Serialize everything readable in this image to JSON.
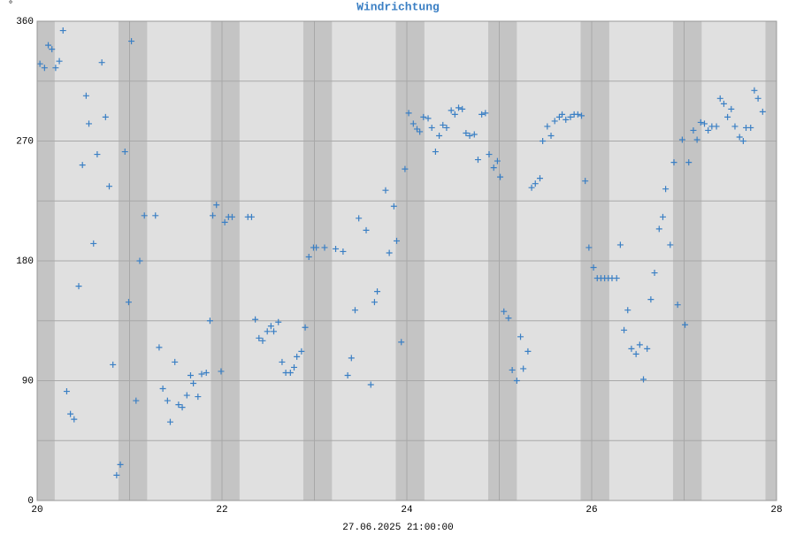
{
  "chart_data": {
    "type": "scatter",
    "title": "Windrichtung",
    "ylabel": "°",
    "xlabel": "27.06.2025 21:00:00",
    "color": "#3a7fc4",
    "grid": true,
    "xlim": [
      20,
      28
    ],
    "xticks": [
      20,
      22,
      24,
      26,
      28
    ],
    "xminor": [
      21,
      23,
      25,
      27
    ],
    "ylim": [
      0,
      360
    ],
    "yticks": [
      0,
      90,
      180,
      270,
      360
    ],
    "yminor": [
      45,
      135,
      225,
      315
    ],
    "x": [
      20.03,
      20.08,
      20.12,
      20.16,
      20.2,
      20.24,
      20.28,
      20.32,
      20.36,
      20.4,
      20.45,
      20.49,
      20.53,
      20.56,
      20.61,
      20.65,
      20.7,
      20.74,
      20.78,
      20.82,
      20.86,
      20.9,
      20.95,
      20.99,
      21.02,
      21.07,
      21.11,
      21.16,
      21.28,
      21.32,
      21.36,
      21.41,
      21.44,
      21.49,
      21.53,
      21.57,
      21.62,
      21.66,
      21.69,
      21.74,
      21.78,
      21.83,
      21.87,
      21.9,
      21.94,
      21.99,
      22.03,
      22.07,
      22.11,
      22.28,
      22.32,
      22.36,
      22.4,
      22.44,
      22.49,
      22.53,
      22.56,
      22.61,
      22.65,
      22.69,
      22.74,
      22.78,
      22.81,
      22.86,
      22.9,
      22.94,
      22.99,
      23.02,
      23.11,
      23.23,
      23.31,
      23.36,
      23.4,
      23.44,
      23.48,
      23.56,
      23.61,
      23.65,
      23.68,
      23.77,
      23.81,
      23.86,
      23.89,
      23.94,
      23.98,
      24.02,
      24.07,
      24.11,
      24.14,
      24.18,
      24.23,
      24.27,
      24.31,
      24.35,
      24.39,
      24.43,
      24.48,
      24.52,
      24.56,
      24.6,
      24.64,
      24.68,
      24.73,
      24.77,
      24.81,
      24.85,
      24.89,
      24.94,
      24.98,
      25.01,
      25.05,
      25.1,
      25.14,
      25.19,
      25.23,
      25.26,
      25.31,
      25.35,
      25.39,
      25.44,
      25.47,
      25.52,
      25.56,
      25.6,
      25.65,
      25.68,
      25.72,
      25.77,
      25.81,
      25.85,
      25.89,
      25.93,
      25.97,
      26.02,
      26.06,
      26.1,
      26.14,
      26.18,
      26.22,
      26.27,
      26.31,
      26.35,
      26.39,
      26.43,
      26.48,
      26.52,
      26.56,
      26.6,
      26.64,
      26.68,
      26.73,
      26.77,
      26.8,
      26.85,
      26.89,
      26.93,
      26.98,
      27.01,
      27.05,
      27.1,
      27.14,
      27.18,
      27.22,
      27.26,
      27.3,
      27.35,
      27.39,
      27.43,
      27.47,
      27.51,
      27.55,
      27.6,
      27.64,
      27.67,
      27.72,
      27.76,
      27.8,
      27.85
    ],
    "values": [
      328,
      325,
      342,
      339,
      325,
      330,
      353,
      82,
      65,
      61,
      161,
      252,
      304,
      283,
      193,
      260,
      329,
      288,
      236,
      102,
      19,
      27,
      262,
      149,
      345,
      75,
      180,
      214,
      214,
      115,
      84,
      75,
      59,
      104,
      72,
      70,
      79,
      94,
      88,
      78,
      95,
      96,
      135,
      214,
      222,
      97,
      209,
      213,
      213,
      213,
      213,
      136,
      122,
      120,
      127,
      131,
      127,
      134,
      104,
      96,
      96,
      100,
      108,
      112,
      130,
      183,
      190,
      190,
      190,
      189,
      187,
      94,
      107,
      143,
      212,
      203,
      87,
      149,
      157,
      233,
      186,
      221,
      195,
      119,
      249,
      291,
      283,
      279,
      277,
      288,
      287,
      280,
      262,
      274,
      282,
      280,
      293,
      290,
      295,
      294,
      276,
      274,
      275,
      256,
      290,
      291,
      260,
      250,
      255,
      243,
      142,
      137,
      98,
      90,
      123,
      99,
      112,
      235,
      238,
      242,
      270,
      281,
      274,
      285,
      288,
      290,
      286,
      288,
      290,
      290,
      289,
      240,
      190,
      175,
      167,
      167,
      167,
      167,
      167,
      167,
      192,
      128,
      143,
      114,
      110,
      117,
      91,
      114,
      151,
      171,
      204,
      213,
      234,
      192,
      254,
      147,
      271,
      132,
      254,
      278,
      271,
      284,
      283,
      278,
      281,
      281,
      302,
      298,
      288,
      294,
      281,
      273,
      270,
      280,
      280,
      308,
      302,
      292
    ]
  }
}
